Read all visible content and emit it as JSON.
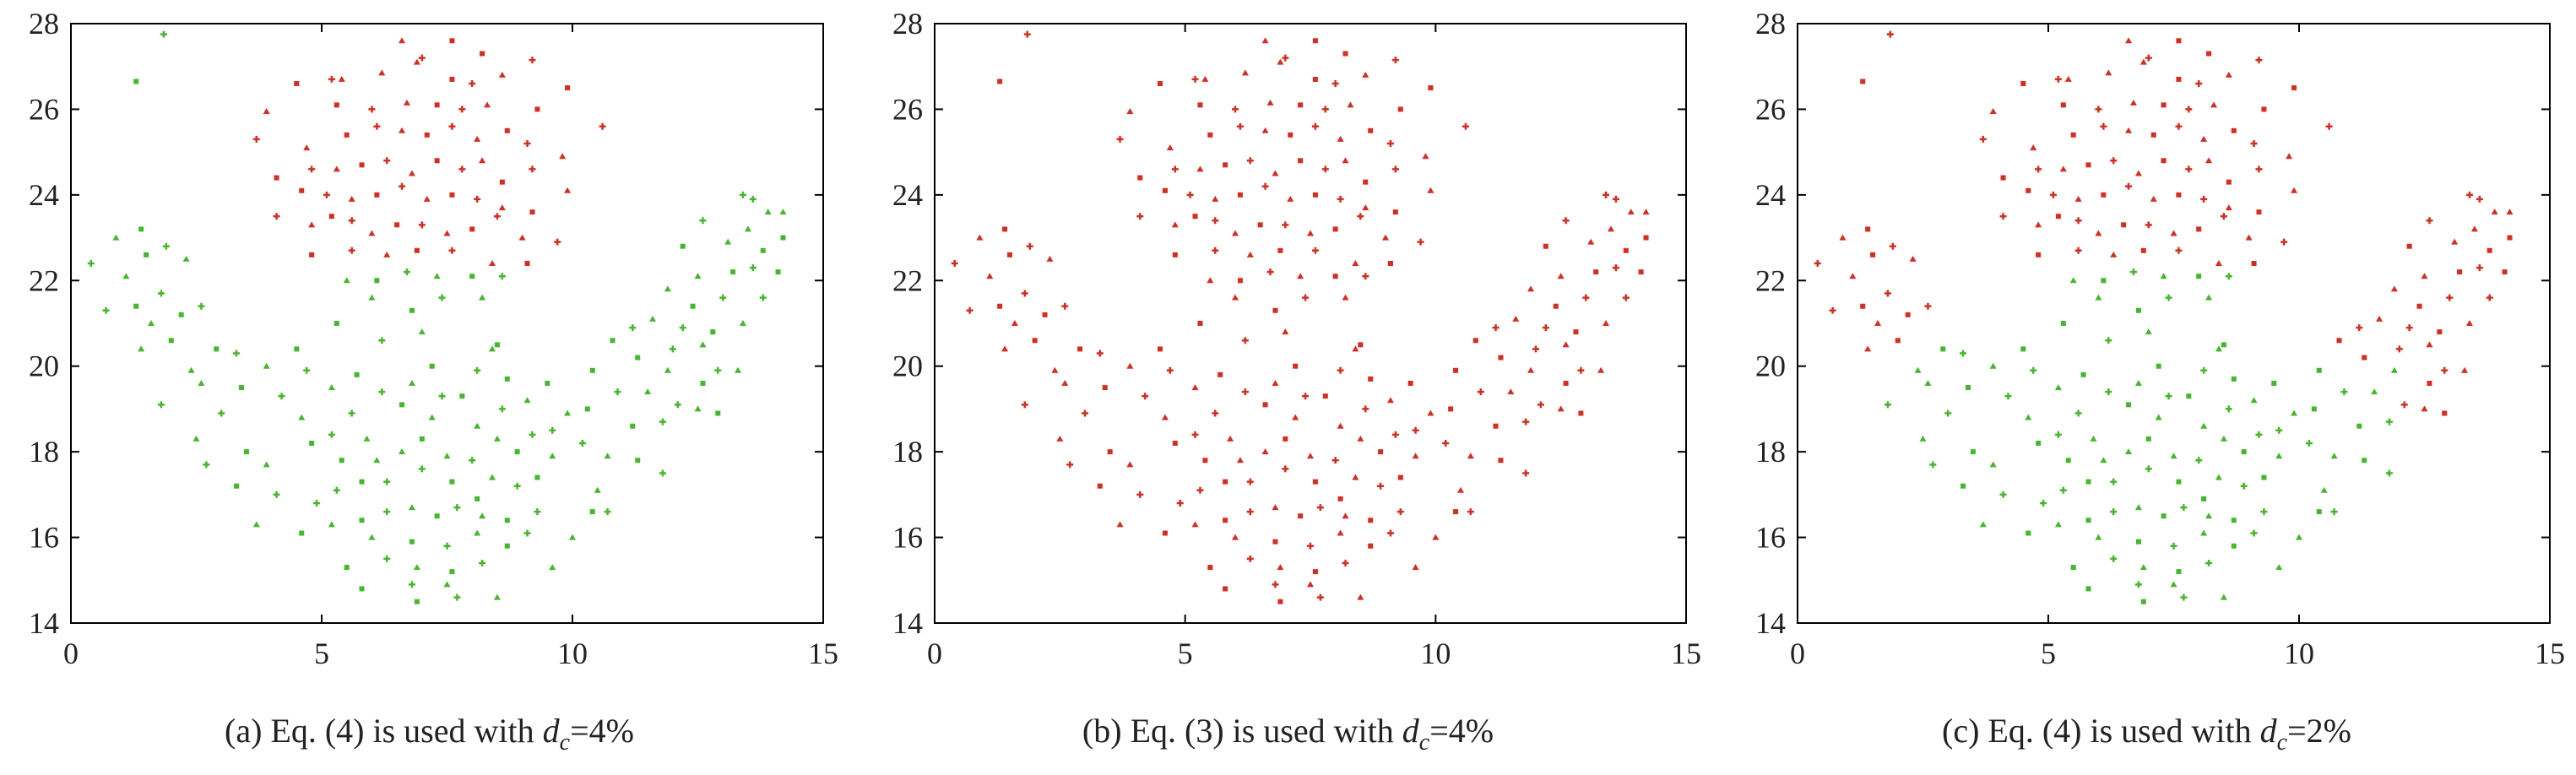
{
  "colors": {
    "red": "#d62d20",
    "green": "#44b82a",
    "axis": "#000000",
    "text": "#222222"
  },
  "chart_data": [
    {
      "type": "scatter",
      "panel": "a",
      "caption": {
        "prefix": "(a) Eq. (4) is used with ",
        "symbol": "d",
        "subscript": "c",
        "suffix": "=4%"
      },
      "xlim": [
        0,
        15
      ],
      "ylim": [
        14,
        28
      ],
      "xticks": [
        0,
        5,
        10,
        15
      ],
      "yticks": [
        14,
        16,
        18,
        20,
        22,
        24,
        26,
        28
      ],
      "grid": false,
      "split_rule": "a",
      "series": [
        {
          "color": "red"
        },
        {
          "color": "green"
        }
      ]
    },
    {
      "type": "scatter",
      "panel": "b",
      "caption": {
        "prefix": "(b) Eq. (3) is used with ",
        "symbol": "d",
        "subscript": "c",
        "suffix": "=4%"
      },
      "xlim": [
        0,
        15
      ],
      "ylim": [
        14,
        28
      ],
      "xticks": [
        0,
        5,
        10,
        15
      ],
      "yticks": [
        14,
        16,
        18,
        20,
        22,
        24,
        26,
        28
      ],
      "grid": false,
      "split_rule": "b",
      "series": [
        {
          "color": "red"
        },
        {
          "color": "green"
        }
      ]
    },
    {
      "type": "scatter",
      "panel": "c",
      "caption": {
        "prefix": "(c) Eq. (4) is used with ",
        "symbol": "d",
        "subscript": "c",
        "suffix": "=2%"
      },
      "xlim": [
        0,
        15
      ],
      "ylim": [
        14,
        28
      ],
      "xticks": [
        0,
        5,
        10,
        15
      ],
      "yticks": [
        14,
        16,
        18,
        20,
        22,
        24,
        26,
        28
      ],
      "grid": false,
      "split_rule": "c",
      "series": [
        {
          "color": "red"
        },
        {
          "color": "green"
        }
      ]
    }
  ],
  "points": [
    [
      1.3,
      26.65
    ],
    [
      1.85,
      27.75
    ],
    [
      6.6,
      27.6
    ],
    [
      7.6,
      27.6
    ],
    [
      7.0,
      27.2
    ],
    [
      6.9,
      27.1
    ],
    [
      8.2,
      27.3
    ],
    [
      9.2,
      27.15
    ],
    [
      5.4,
      26.7
    ],
    [
      4.5,
      26.6
    ],
    [
      5.2,
      26.7
    ],
    [
      6.2,
      26.85
    ],
    [
      7.6,
      26.7
    ],
    [
      8.0,
      26.6
    ],
    [
      8.6,
      26.8
    ],
    [
      9.9,
      26.5
    ],
    [
      10.6,
      25.6
    ],
    [
      3.9,
      25.95
    ],
    [
      5.3,
      26.1
    ],
    [
      6.0,
      26.0
    ],
    [
      6.7,
      26.15
    ],
    [
      7.3,
      26.1
    ],
    [
      7.8,
      26.0
    ],
    [
      8.3,
      26.1
    ],
    [
      9.3,
      26.0
    ],
    [
      3.7,
      25.3
    ],
    [
      4.7,
      25.1
    ],
    [
      5.5,
      25.4
    ],
    [
      6.1,
      25.6
    ],
    [
      6.6,
      25.5
    ],
    [
      7.1,
      25.4
    ],
    [
      7.6,
      25.6
    ],
    [
      8.1,
      25.3
    ],
    [
      8.7,
      25.5
    ],
    [
      9.1,
      25.2
    ],
    [
      9.8,
      24.9
    ],
    [
      4.1,
      24.4
    ],
    [
      4.8,
      24.6
    ],
    [
      5.3,
      24.6
    ],
    [
      5.8,
      24.7
    ],
    [
      6.3,
      24.8
    ],
    [
      6.8,
      24.5
    ],
    [
      7.3,
      24.8
    ],
    [
      7.8,
      24.6
    ],
    [
      8.2,
      24.8
    ],
    [
      8.6,
      24.3
    ],
    [
      9.2,
      24.6
    ],
    [
      9.9,
      24.1
    ],
    [
      4.6,
      24.1
    ],
    [
      5.1,
      24.0
    ],
    [
      5.6,
      23.9
    ],
    [
      6.1,
      24.0
    ],
    [
      6.6,
      24.2
    ],
    [
      7.1,
      23.9
    ],
    [
      7.6,
      24.0
    ],
    [
      8.1,
      23.9
    ],
    [
      8.6,
      23.7
    ],
    [
      9.2,
      23.6
    ],
    [
      4.1,
      23.5
    ],
    [
      4.8,
      23.3
    ],
    [
      5.2,
      23.5
    ],
    [
      5.6,
      23.4
    ],
    [
      6.0,
      23.1
    ],
    [
      6.5,
      23.3
    ],
    [
      7.0,
      23.3
    ],
    [
      7.5,
      23.1
    ],
    [
      8.0,
      23.2
    ],
    [
      8.5,
      23.5
    ],
    [
      9.0,
      23.0
    ],
    [
      4.8,
      22.6
    ],
    [
      5.6,
      22.7
    ],
    [
      6.3,
      22.6
    ],
    [
      6.9,
      22.7
    ],
    [
      7.6,
      22.7
    ],
    [
      8.4,
      22.4
    ],
    [
      9.1,
      22.4
    ],
    [
      9.7,
      22.9
    ],
    [
      5.5,
      22.0
    ],
    [
      6.1,
      22.0
    ],
    [
      6.7,
      22.2
    ],
    [
      7.3,
      22.1
    ],
    [
      8.0,
      22.1
    ],
    [
      8.6,
      22.1
    ],
    [
      6.0,
      21.6
    ],
    [
      6.8,
      21.3
    ],
    [
      7.4,
      21.6
    ],
    [
      8.2,
      21.6
    ],
    [
      5.3,
      21.0
    ],
    [
      6.2,
      20.6
    ],
    [
      7.0,
      20.8
    ],
    [
      8.5,
      20.5
    ],
    [
      0.4,
      22.4
    ],
    [
      0.9,
      23.0
    ],
    [
      1.4,
      23.2
    ],
    [
      0.7,
      21.3
    ],
    [
      1.1,
      22.1
    ],
    [
      1.5,
      22.6
    ],
    [
      1.9,
      22.8
    ],
    [
      2.3,
      22.5
    ],
    [
      1.3,
      21.4
    ],
    [
      1.8,
      21.7
    ],
    [
      1.6,
      21.0
    ],
    [
      2.2,
      21.2
    ],
    [
      2.6,
      21.4
    ],
    [
      1.4,
      20.4
    ],
    [
      2.0,
      20.6
    ],
    [
      1.8,
      19.1
    ],
    [
      2.4,
      19.9
    ],
    [
      2.9,
      20.4
    ],
    [
      3.3,
      20.3
    ],
    [
      2.6,
      19.6
    ],
    [
      3.4,
      19.5
    ],
    [
      3.0,
      18.9
    ],
    [
      2.5,
      18.3
    ],
    [
      3.5,
      18.0
    ],
    [
      2.7,
      17.7
    ],
    [
      3.9,
      17.7
    ],
    [
      3.3,
      17.2
    ],
    [
      4.1,
      17.0
    ],
    [
      3.7,
      16.3
    ],
    [
      4.6,
      16.1
    ],
    [
      4.2,
      19.3
    ],
    [
      3.9,
      20.0
    ],
    [
      4.5,
      20.4
    ],
    [
      4.7,
      19.9
    ],
    [
      4.6,
      18.8
    ],
    [
      4.8,
      18.2
    ],
    [
      5.2,
      18.4
    ],
    [
      5.2,
      19.5
    ],
    [
      5.7,
      19.8
    ],
    [
      5.6,
      18.9
    ],
    [
      5.9,
      18.3
    ],
    [
      5.4,
      17.8
    ],
    [
      5.3,
      17.1
    ],
    [
      6.1,
      17.8
    ],
    [
      5.8,
      17.3
    ],
    [
      6.3,
      17.3
    ],
    [
      6.6,
      18.0
    ],
    [
      6.6,
      19.1
    ],
    [
      6.2,
      19.4
    ],
    [
      6.8,
      19.6
    ],
    [
      7.2,
      20.0
    ],
    [
      7.4,
      19.3
    ],
    [
      7.2,
      18.8
    ],
    [
      7.0,
      18.3
    ],
    [
      7.0,
      17.6
    ],
    [
      7.5,
      17.9
    ],
    [
      7.6,
      17.3
    ],
    [
      8.0,
      17.8
    ],
    [
      8.1,
      18.6
    ],
    [
      7.8,
      19.3
    ],
    [
      8.1,
      19.9
    ],
    [
      8.4,
      20.4
    ],
    [
      8.7,
      19.7
    ],
    [
      8.6,
      19.0
    ],
    [
      8.5,
      18.3
    ],
    [
      8.9,
      18.0
    ],
    [
      9.2,
      18.4
    ],
    [
      9.1,
      19.2
    ],
    [
      9.5,
      19.6
    ],
    [
      9.6,
      18.5
    ],
    [
      9.9,
      18.9
    ],
    [
      10.3,
      19.0
    ],
    [
      10.2,
      18.2
    ],
    [
      9.6,
      17.9
    ],
    [
      9.3,
      17.4
    ],
    [
      8.9,
      17.2
    ],
    [
      8.4,
      17.4
    ],
    [
      8.1,
      16.9
    ],
    [
      4.9,
      16.8
    ],
    [
      5.2,
      16.3
    ],
    [
      5.8,
      16.4
    ],
    [
      6.3,
      16.6
    ],
    [
      6.8,
      16.7
    ],
    [
      7.3,
      16.5
    ],
    [
      7.7,
      16.7
    ],
    [
      8.2,
      16.5
    ],
    [
      8.7,
      16.4
    ],
    [
      9.3,
      16.6
    ],
    [
      6.0,
      16.0
    ],
    [
      6.8,
      15.9
    ],
    [
      7.5,
      15.8
    ],
    [
      8.1,
      16.1
    ],
    [
      8.7,
      15.8
    ],
    [
      9.1,
      16.1
    ],
    [
      10.0,
      16.0
    ],
    [
      5.5,
      15.3
    ],
    [
      6.3,
      15.5
    ],
    [
      6.9,
      15.3
    ],
    [
      7.6,
      15.2
    ],
    [
      8.2,
      15.4
    ],
    [
      9.6,
      15.3
    ],
    [
      5.8,
      14.8
    ],
    [
      6.8,
      14.9
    ],
    [
      7.5,
      14.9
    ],
    [
      6.9,
      14.5
    ],
    [
      7.7,
      14.6
    ],
    [
      8.5,
      14.6
    ],
    [
      10.4,
      19.9
    ],
    [
      10.9,
      19.4
    ],
    [
      11.5,
      19.4
    ],
    [
      11.2,
      18.6
    ],
    [
      11.8,
      18.7
    ],
    [
      10.7,
      17.9
    ],
    [
      11.3,
      17.8
    ],
    [
      11.8,
      17.5
    ],
    [
      10.5,
      17.1
    ],
    [
      10.4,
      16.6
    ],
    [
      10.7,
      16.6
    ],
    [
      11.9,
      19.9
    ],
    [
      10.8,
      20.6
    ],
    [
      11.2,
      20.9
    ],
    [
      11.6,
      21.1
    ],
    [
      11.3,
      20.2
    ],
    [
      12.0,
      20.4
    ],
    [
      11.9,
      21.8
    ],
    [
      12.4,
      21.4
    ],
    [
      12.2,
      20.9
    ],
    [
      12.6,
      20.5
    ],
    [
      12.6,
      19.6
    ],
    [
      12.1,
      19.1
    ],
    [
      12.5,
      19.0
    ],
    [
      12.9,
      18.9
    ],
    [
      12.9,
      19.9
    ],
    [
      13.3,
      19.9
    ],
    [
      12.8,
      20.8
    ],
    [
      13.0,
      21.6
    ],
    [
      12.5,
      22.1
    ],
    [
      12.2,
      22.8
    ],
    [
      12.6,
      23.4
    ],
    [
      13.1,
      22.9
    ],
    [
      13.2,
      22.2
    ],
    [
      13.6,
      22.3
    ],
    [
      13.5,
      23.2
    ],
    [
      13.8,
      22.7
    ],
    [
      13.8,
      21.6
    ],
    [
      13.4,
      21.0
    ],
    [
      14.1,
      22.2
    ],
    [
      13.4,
      24.0
    ],
    [
      13.9,
      23.6
    ],
    [
      14.2,
      23.0
    ],
    [
      13.6,
      23.9
    ],
    [
      14.2,
      23.6
    ]
  ]
}
